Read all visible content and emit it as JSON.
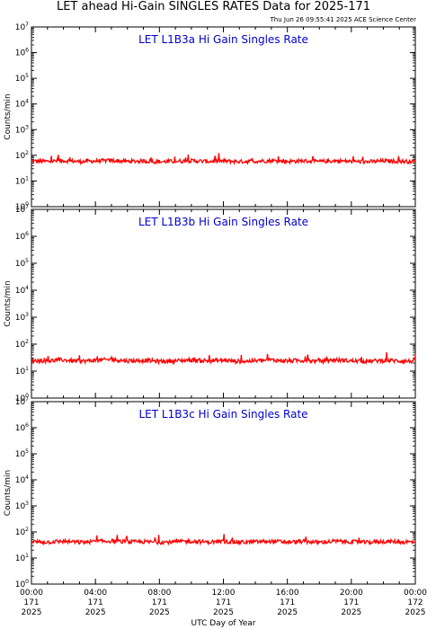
{
  "title": "LET ahead Hi-Gain SINGLES RATES Data for 2025-171",
  "timestamp": "Thu Jun 26 09:55:41 2025 ACE Science Center",
  "colors": {
    "series": "#ff0000",
    "panel_title": "#0000cc",
    "axes": "#000000"
  },
  "x_axis": {
    "label": "UTC Day of Year",
    "ticks": [
      {
        "hours": 0,
        "time": "00:00",
        "day": "171",
        "year": "2025"
      },
      {
        "hours": 4,
        "time": "04:00",
        "day": "171",
        "year": "2025"
      },
      {
        "hours": 8,
        "time": "08:00",
        "day": "171",
        "year": "2025"
      },
      {
        "hours": 12,
        "time": "12:00",
        "day": "171",
        "year": "2025"
      },
      {
        "hours": 16,
        "time": "16:00",
        "day": "171",
        "year": "2025"
      },
      {
        "hours": 20,
        "time": "20:00",
        "day": "171",
        "year": "2025"
      },
      {
        "hours": 24,
        "time": "00:00",
        "day": "172",
        "year": "2025"
      }
    ]
  },
  "y_axis": {
    "label": "Counts/min",
    "scale": "log",
    "ticks": [
      {
        "value": 1,
        "base": "10",
        "exp": "0"
      },
      {
        "value": 10,
        "base": "10",
        "exp": "1"
      },
      {
        "value": 100,
        "base": "10",
        "exp": "2"
      },
      {
        "value": 1000,
        "base": "10",
        "exp": "3"
      },
      {
        "value": 10000,
        "base": "10",
        "exp": "4"
      },
      {
        "value": 100000,
        "base": "10",
        "exp": "5"
      },
      {
        "value": 1000000,
        "base": "10",
        "exp": "6"
      },
      {
        "value": 10000000,
        "base": "10",
        "exp": "7"
      }
    ]
  },
  "chart_data": [
    {
      "type": "line",
      "title": "LET L1B3a Hi Gain Singles Rate",
      "xlabel": "UTC Day of Year",
      "ylabel": "Counts/min",
      "xlim": [
        "2025-171 00:00",
        "2025-172 00:00"
      ],
      "ylim": [
        1,
        10000000
      ],
      "yscale": "log",
      "series": [
        {
          "x": [
            "00:00",
            "01:00",
            "02:00",
            "03:00",
            "04:00",
            "05:00",
            "06:00",
            "07:00",
            "08:00",
            "09:00",
            "10:00",
            "11:00",
            "12:00",
            "13:00",
            "14:00",
            "15:00",
            "16:00",
            "17:00",
            "18:00",
            "19:00",
            "20:00",
            "21:00",
            "22:00",
            "23:00",
            "24:00"
          ],
          "values": [
            60,
            58,
            62,
            57,
            60,
            63,
            58,
            60,
            56,
            59,
            61,
            58,
            60,
            57,
            59,
            62,
            58,
            60,
            57,
            61,
            58,
            56,
            60,
            59,
            57
          ]
        }
      ]
    },
    {
      "type": "line",
      "title": "LET L1B3b Hi Gain Singles Rate",
      "xlabel": "UTC Day of Year",
      "ylabel": "Counts/min",
      "xlim": [
        "2025-171 00:00",
        "2025-172 00:00"
      ],
      "ylim": [
        1,
        10000000
      ],
      "yscale": "log",
      "series": [
        {
          "x": [
            "00:00",
            "01:00",
            "02:00",
            "03:00",
            "04:00",
            "05:00",
            "06:00",
            "07:00",
            "08:00",
            "09:00",
            "10:00",
            "11:00",
            "12:00",
            "13:00",
            "14:00",
            "15:00",
            "16:00",
            "17:00",
            "18:00",
            "19:00",
            "20:00",
            "21:00",
            "22:00",
            "23:00",
            "24:00"
          ],
          "values": [
            25,
            24,
            26,
            23,
            25,
            27,
            24,
            25,
            23,
            24,
            26,
            24,
            25,
            23,
            24,
            26,
            24,
            25,
            23,
            26,
            24,
            23,
            25,
            24,
            23
          ]
        }
      ]
    },
    {
      "type": "line",
      "title": "LET L1B3c Hi Gain Singles Rate",
      "xlabel": "UTC Day of Year",
      "ylabel": "Counts/min",
      "xlim": [
        "2025-171 00:00",
        "2025-172 00:00"
      ],
      "ylim": [
        1,
        10000000
      ],
      "yscale": "log",
      "series": [
        {
          "x": [
            "00:00",
            "01:00",
            "02:00",
            "03:00",
            "04:00",
            "05:00",
            "06:00",
            "07:00",
            "08:00",
            "09:00",
            "10:00",
            "11:00",
            "12:00",
            "13:00",
            "14:00",
            "15:00",
            "16:00",
            "17:00",
            "18:00",
            "19:00",
            "20:00",
            "21:00",
            "22:00",
            "23:00",
            "24:00"
          ],
          "values": [
            42,
            41,
            44,
            40,
            43,
            45,
            41,
            42,
            40,
            42,
            44,
            41,
            43,
            40,
            42,
            44,
            41,
            43,
            40,
            44,
            42,
            40,
            43,
            42,
            41
          ]
        }
      ]
    }
  ]
}
